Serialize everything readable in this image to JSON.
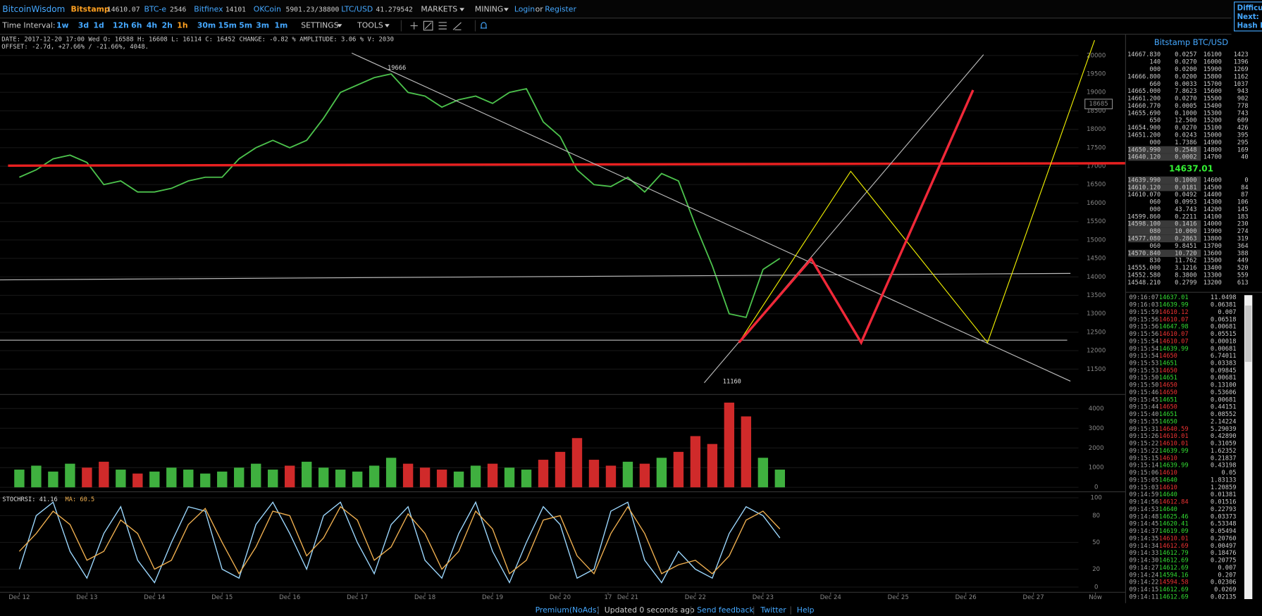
{
  "header": {
    "brand": "BitcoinWisdom",
    "tickers": [
      {
        "name": "Bitstamp",
        "price": "14610.07"
      },
      {
        "name": "BTC-e",
        "price": "2546"
      },
      {
        "name": "Bitfinex",
        "price": "14101"
      },
      {
        "name": "OKCoin",
        "price": "5901.23/38800"
      },
      {
        "name": "LTC/USD",
        "price": "41.279542"
      }
    ],
    "menus": [
      "MARKETS",
      "MINING"
    ],
    "login": "Login",
    "or": "or",
    "register": "Register",
    "side_box": [
      "Difficul",
      "Next:",
      "Hash R"
    ]
  },
  "toolbar": {
    "label": "Time Interval:",
    "intervals": [
      "1w",
      "3d",
      "1d",
      "12h",
      "6h",
      "4h",
      "2h",
      "1h",
      "30m",
      "15m",
      "5m",
      "3m",
      "1m"
    ],
    "active": "1h",
    "settings": "SETTINGS",
    "tools": "TOOLS"
  },
  "info": {
    "line1": "DATE: 2017-12-20 17:00 Wed   O: 16588   H: 16608   L: 16114   C: 16452   CHANGE: -0.82 %   AMPLITUDE: 3.06 %   V: 2030",
    "line2": "OFFSET: -2.7d, +27.66% / -21.66%, 4048."
  },
  "chart_data": [
    {
      "type": "line",
      "color": "#4cc24c",
      "x": [
        0,
        6,
        12,
        18,
        24,
        30,
        36,
        42,
        48,
        54,
        60,
        66,
        72,
        78,
        84,
        90,
        96,
        102,
        108,
        114,
        120,
        126,
        132,
        138,
        144,
        150,
        156,
        162,
        168,
        174,
        180,
        186,
        192,
        198,
        204,
        210,
        216,
        222,
        228,
        234,
        240,
        246,
        252,
        258,
        264,
        270
      ],
      "values": [
        16700,
        16900,
        17200,
        17300,
        17100,
        16500,
        16600,
        16300,
        16300,
        16400,
        16600,
        16700,
        16700,
        17200,
        17500,
        17700,
        17500,
        17700,
        18300,
        19000,
        19200,
        19400,
        19500,
        19000,
        18900,
        18600,
        18800,
        18900,
        18700,
        19000,
        19100,
        18200,
        17800,
        16900,
        16500,
        16450,
        16700,
        16300,
        16800,
        16600,
        15400,
        14300,
        13000,
        12900,
        14200,
        14500
      ],
      "xlim": [
        -6.86,
        392.57
      ],
      "ylim": [
        10824,
        20588
      ],
      "yticks": [
        11500,
        12000,
        12500,
        13000,
        13500,
        14000,
        14500,
        15000,
        15500,
        16000,
        16500,
        17000,
        17500,
        18000,
        18500,
        19000,
        19500,
        20000
      ],
      "cursor_price": 18685,
      "annotations": [
        {
          "x": 134,
          "value": 19666
        },
        {
          "x": 253,
          "value": 11160
        }
      ]
    },
    {
      "type": "bar",
      "up_color": "#3fb03f",
      "down_color": "#d02a2a",
      "x": [
        0,
        6,
        12,
        18,
        24,
        30,
        36,
        42,
        48,
        54,
        60,
        66,
        72,
        78,
        84,
        90,
        96,
        102,
        108,
        114,
        120,
        126,
        132,
        138,
        144,
        150,
        156,
        162,
        168,
        174,
        180,
        186,
        192,
        198,
        204,
        210,
        216,
        222,
        228,
        234,
        240,
        246,
        252,
        258,
        264,
        270
      ],
      "values": [
        900,
        1100,
        800,
        1200,
        1000,
        1300,
        900,
        700,
        800,
        1000,
        900,
        700,
        800,
        1000,
        1200,
        900,
        1100,
        1300,
        1000,
        900,
        800,
        1100,
        1500,
        1200,
        1000,
        900,
        800,
        1100,
        1200,
        1000,
        900,
        1400,
        1800,
        2500,
        1400,
        1100,
        1300,
        1200,
        1500,
        1800,
        2600,
        2200,
        4300,
        3600,
        1500,
        900
      ],
      "xlim": [
        -6.86,
        392.57
      ],
      "ylim": [
        -163,
        4653
      ],
      "yticks": [
        0,
        1000,
        2000,
        3000,
        4000
      ]
    },
    {
      "type": "line",
      "x": [
        0,
        6,
        12,
        18,
        24,
        30,
        36,
        42,
        48,
        54,
        60,
        66,
        72,
        78,
        84,
        90,
        96,
        102,
        108,
        114,
        120,
        126,
        132,
        138,
        144,
        150,
        156,
        162,
        168,
        174,
        180,
        186,
        192,
        198,
        204,
        210,
        216,
        222,
        228,
        234,
        240,
        246,
        252,
        258,
        264,
        270
      ],
      "series": [
        {
          "name": "STOCHRSI: 41.16",
          "color": "#9cd8ff",
          "values": [
            20,
            80,
            95,
            40,
            10,
            60,
            90,
            30,
            5,
            50,
            90,
            85,
            20,
            10,
            70,
            95,
            60,
            20,
            80,
            95,
            50,
            15,
            70,
            90,
            30,
            10,
            60,
            95,
            40,
            5,
            50,
            90,
            70,
            10,
            20,
            85,
            95,
            30,
            5,
            40,
            20,
            10,
            60,
            90,
            80,
            55
          ]
        },
        {
          "name": "MA: 60.5",
          "color": "#f0b050",
          "values": [
            40,
            60,
            85,
            70,
            30,
            40,
            75,
            60,
            20,
            30,
            70,
            88,
            50,
            15,
            45,
            85,
            80,
            35,
            55,
            90,
            75,
            30,
            45,
            82,
            60,
            20,
            40,
            85,
            65,
            15,
            30,
            75,
            80,
            35,
            15,
            60,
            90,
            60,
            15,
            25,
            30,
            15,
            35,
            75,
            85,
            65
          ]
        }
      ],
      "xlim": [
        -6.86,
        392.57
      ],
      "ylim": [
        -6.3,
        105.4
      ],
      "yticks": [
        0,
        20,
        50,
        80,
        100
      ],
      "xticks": [
        {
          "value": 0,
          "label": "Dec 12"
        },
        {
          "value": 24,
          "label": "Dec 13"
        },
        {
          "value": 48,
          "label": "Dec 14"
        },
        {
          "value": 72,
          "label": "Dec 15"
        },
        {
          "value": 96,
          "label": "Dec 16"
        },
        {
          "value": 120,
          "label": "Dec 17"
        },
        {
          "value": 144,
          "label": "Dec 18"
        },
        {
          "value": 168,
          "label": "Dec 19"
        },
        {
          "value": 192,
          "label": "Dec 20"
        },
        {
          "value": 209,
          "label": "17"
        },
        {
          "value": 216,
          "label": "Dec 21"
        },
        {
          "value": 240,
          "label": "Dec 22"
        },
        {
          "value": 264,
          "label": "Dec 23"
        },
        {
          "value": 288,
          "label": "Dec 24"
        },
        {
          "value": 312,
          "label": "Dec 25"
        },
        {
          "value": 336,
          "label": "Dec 26"
        },
        {
          "value": 360,
          "label": "Dec 27"
        },
        {
          "value": 382,
          "label": "Now"
        }
      ]
    }
  ],
  "order_book": {
    "title": "Bitstamp BTC/USD",
    "last_price": "14637.01",
    "asks": [
      {
        "price": "14667.830",
        "amount": "0.0257",
        "level": "16100",
        "total": "1423"
      },
      {
        "price": "140",
        "amount": "0.0270",
        "level": "16000",
        "total": "1396"
      },
      {
        "price": "000",
        "amount": "0.0200",
        "level": "15900",
        "total": "1269"
      },
      {
        "price": "14666.800",
        "amount": "0.0200",
        "level": "15800",
        "total": "1162"
      },
      {
        "price": "660",
        "amount": "0.0033",
        "level": "15700",
        "total": "1037"
      },
      {
        "price": "14665.000",
        "amount": "7.8623",
        "level": "15600",
        "total": "943"
      },
      {
        "price": "14661.200",
        "amount": "0.0270",
        "level": "15500",
        "total": "902"
      },
      {
        "price": "14660.770",
        "amount": "0.0005",
        "level": "15400",
        "total": "778"
      },
      {
        "price": "14655.690",
        "amount": "0.1000",
        "level": "15300",
        "total": "743"
      },
      {
        "price": "650",
        "amount": "12.500",
        "level": "15200",
        "total": "609"
      },
      {
        "price": "14654.900",
        "amount": "0.0270",
        "level": "15100",
        "total": "426"
      },
      {
        "price": "14651.200",
        "amount": "0.0243",
        "level": "15000",
        "total": "395"
      },
      {
        "price": "000",
        "amount": "1.7386",
        "level": "14900",
        "total": "295"
      },
      {
        "price": "14650.990",
        "amount": "0.2548",
        "level": "14800",
        "total": "169",
        "highlight": true
      },
      {
        "price": "14640.120",
        "amount": "0.0002",
        "level": "14700",
        "total": "40",
        "highlight": true
      }
    ],
    "bids": [
      {
        "price": "14639.990",
        "amount": "0.1000",
        "level": "14600",
        "total": "0",
        "highlight": true
      },
      {
        "price": "14610.120",
        "amount": "0.0181",
        "level": "14500",
        "total": "84",
        "highlight": true
      },
      {
        "price": "14610.070",
        "amount": "0.0492",
        "level": "14400",
        "total": "87"
      },
      {
        "price": "060",
        "amount": "0.0993",
        "level": "14300",
        "total": "106"
      },
      {
        "price": "000",
        "amount": "43.743",
        "level": "14200",
        "total": "145"
      },
      {
        "price": "14599.860",
        "amount": "0.2211",
        "level": "14100",
        "total": "183"
      },
      {
        "price": "14598.100",
        "amount": "0.1416",
        "level": "14000",
        "total": "230",
        "highlight": true
      },
      {
        "price": "080",
        "amount": "10.000",
        "level": "13900",
        "total": "274",
        "highlight": true
      },
      {
        "price": "14577.080",
        "amount": "0.2863",
        "level": "13800",
        "total": "319",
        "highlight": true
      },
      {
        "price": "060",
        "amount": "9.8451",
        "level": "13700",
        "total": "364"
      },
      {
        "price": "14570.840",
        "amount": "10.720",
        "level": "13600",
        "total": "388",
        "highlight": true
      },
      {
        "price": "830",
        "amount": "11.762",
        "level": "13500",
        "total": "449"
      },
      {
        "price": "14555.000",
        "amount": "3.1216",
        "level": "13400",
        "total": "520"
      },
      {
        "price": "14552.580",
        "amount": "8.3800",
        "level": "13300",
        "total": "559"
      },
      {
        "price": "14548.210",
        "amount": "0.2799",
        "level": "13200",
        "total": "613"
      }
    ]
  },
  "trades": [
    {
      "time": "09:16:07",
      "price": "14637.01",
      "amount": "11.0498",
      "side": "buy"
    },
    {
      "time": "09:16:03",
      "price": "14639.99",
      "amount": "0.06381",
      "side": "buy"
    },
    {
      "time": "09:15:59",
      "price": "14610.12",
      "amount": "0.007",
      "side": "sell"
    },
    {
      "time": "09:15:56",
      "price": "14610.07",
      "amount": "0.06518",
      "side": "sell"
    },
    {
      "time": "09:15:56",
      "price": "14647.98",
      "amount": "0.00681",
      "side": "buy"
    },
    {
      "time": "09:15:56",
      "price": "14610.07",
      "amount": "0.05515",
      "side": "sell"
    },
    {
      "time": "09:15:54",
      "price": "14610.07",
      "amount": "0.00018",
      "side": "sell"
    },
    {
      "time": "09:15:54",
      "price": "14639.99",
      "amount": "0.00681",
      "side": "buy"
    },
    {
      "time": "09:15:54",
      "price": "14650",
      "amount": "6.74011",
      "side": "sell"
    },
    {
      "time": "09:15:53",
      "price": "14651",
      "amount": "0.03383",
      "side": "buy"
    },
    {
      "time": "09:15:53",
      "price": "14650",
      "amount": "0.09845",
      "side": "sell"
    },
    {
      "time": "09:15:50",
      "price": "14651",
      "amount": "0.00681",
      "side": "buy"
    },
    {
      "time": "09:15:50",
      "price": "14650",
      "amount": "0.13100",
      "side": "sell"
    },
    {
      "time": "09:15:46",
      "price": "14650",
      "amount": "0.53606",
      "side": "sell"
    },
    {
      "time": "09:15:45",
      "price": "14651",
      "amount": "0.00681",
      "side": "buy"
    },
    {
      "time": "09:15:44",
      "price": "14650",
      "amount": "0.44151",
      "side": "sell"
    },
    {
      "time": "09:15:40",
      "price": "14651",
      "amount": "0.08552",
      "side": "buy"
    },
    {
      "time": "09:15:35",
      "price": "14650",
      "amount": "2.14224",
      "side": "buy"
    },
    {
      "time": "09:15:31",
      "price": "14640.59",
      "amount": "5.29039",
      "side": "sell"
    },
    {
      "time": "09:15:26",
      "price": "14610.01",
      "amount": "0.42890",
      "side": "sell"
    },
    {
      "time": "09:15:22",
      "price": "14610.01",
      "amount": "0.31059",
      "side": "sell"
    },
    {
      "time": "09:15:22",
      "price": "14639.99",
      "amount": "1.62352",
      "side": "buy"
    },
    {
      "time": "09:15:15",
      "price": "14610",
      "amount": "0.21837",
      "side": "sell"
    },
    {
      "time": "09:15:14",
      "price": "14639.99",
      "amount": "0.43198",
      "side": "buy"
    },
    {
      "time": "09:15:06",
      "price": "14610",
      "amount": "0.05",
      "side": "sell"
    },
    {
      "time": "09:15:05",
      "price": "14640",
      "amount": "1.83133",
      "side": "buy"
    },
    {
      "time": "09:15:03",
      "price": "14610",
      "amount": "1.20859",
      "side": "sell"
    },
    {
      "time": "09:14:59",
      "price": "14640",
      "amount": "0.01381",
      "side": "buy"
    },
    {
      "time": "09:14:56",
      "price": "14612.84",
      "amount": "0.01516",
      "side": "sell"
    },
    {
      "time": "09:14:53",
      "price": "14640",
      "amount": "0.22793",
      "side": "buy"
    },
    {
      "time": "09:14:48",
      "price": "14625.46",
      "amount": "0.03373",
      "side": "buy"
    },
    {
      "time": "09:14:45",
      "price": "14620.41",
      "amount": "6.53348",
      "side": "buy"
    },
    {
      "time": "09:14:37",
      "price": "14619.09",
      "amount": "0.05494",
      "side": "buy"
    },
    {
      "time": "09:14:35",
      "price": "14610.01",
      "amount": "0.20760",
      "side": "sell"
    },
    {
      "time": "09:14:34",
      "price": "14612.69",
      "amount": "0.00497",
      "side": "sell"
    },
    {
      "time": "09:14:33",
      "price": "14612.79",
      "amount": "0.18476",
      "side": "buy"
    },
    {
      "time": "09:14:30",
      "price": "14612.69",
      "amount": "0.20775",
      "side": "buy"
    },
    {
      "time": "09:14:27",
      "price": "14612.69",
      "amount": "0.007",
      "side": "buy"
    },
    {
      "time": "09:14:24",
      "price": "14594.16",
      "amount": "0.207",
      "side": "buy"
    },
    {
      "time": "09:14:22",
      "price": "14594.58",
      "amount": "0.02306",
      "side": "sell"
    },
    {
      "time": "09:14:15",
      "price": "14612.69",
      "amount": "0.0269",
      "side": "buy"
    },
    {
      "time": "09:14:11",
      "price": "14612.69",
      "amount": "0.02135",
      "side": "buy"
    }
  ],
  "footer": {
    "premium": "Premium(NoAds)",
    "updated": "Updated 0 seconds ago",
    "feedback": "Send feedback",
    "twitter": "Twitter",
    "help": "Help"
  }
}
